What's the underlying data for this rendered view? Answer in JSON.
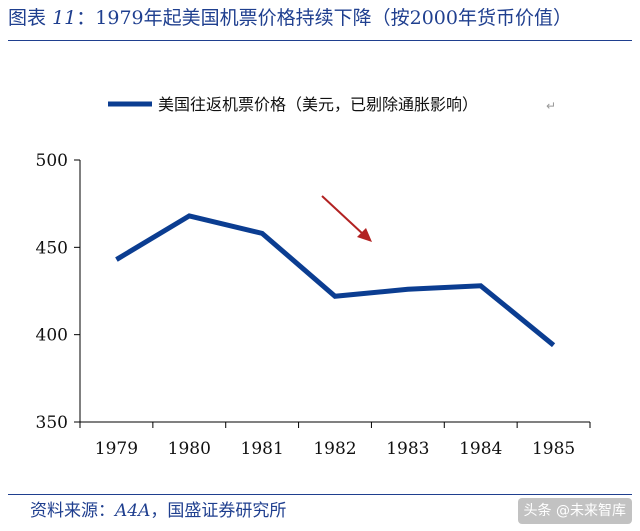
{
  "figure": {
    "label": "图表",
    "number": "11",
    "colon": "：",
    "title": "1979年起美国机票价格持续下降（按2000年货币价值）"
  },
  "chart_data": {
    "type": "line",
    "categories": [
      "1979",
      "1980",
      "1981",
      "1982",
      "1983",
      "1984",
      "1985"
    ],
    "series": [
      {
        "name": "美国往返机票价格（美元，已剔除通胀影响）",
        "values": [
          443,
          468,
          458,
          422,
          426,
          428,
          394
        ],
        "color": "#0b3d91"
      }
    ],
    "y_ticks": [
      "350",
      "400",
      "450",
      "500"
    ],
    "ylim": [
      350,
      500
    ],
    "grid": false,
    "legend": "top-left",
    "annotation": {
      "type": "arrow",
      "color": "#b22222"
    }
  },
  "source": {
    "label": "资料来源：",
    "org1": "A4A",
    "sep": "，",
    "org2": "国盛证券研究所"
  },
  "watermark": "头条 @未来智库",
  "return_mark": "↵"
}
